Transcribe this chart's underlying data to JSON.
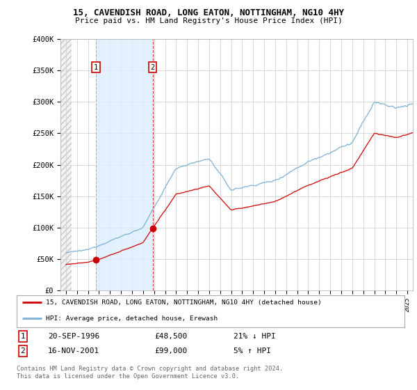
{
  "title1": "15, CAVENDISH ROAD, LONG EATON, NOTTINGHAM, NG10 4HY",
  "title2": "Price paid vs. HM Land Registry's House Price Index (HPI)",
  "legend_line1": "15, CAVENDISH ROAD, LONG EATON, NOTTINGHAM, NG10 4HY (detached house)",
  "legend_line2": "HPI: Average price, detached house, Erewash",
  "footer": "Contains HM Land Registry data © Crown copyright and database right 2024.\nThis data is licensed under the Open Government Licence v3.0.",
  "sale1_date": "20-SEP-1996",
  "sale1_price": "£48,500",
  "sale1_hpi": "21% ↓ HPI",
  "sale1_year": 1996.72,
  "sale1_value": 48500,
  "sale2_date": "16-NOV-2001",
  "sale2_price": "£99,000",
  "sale2_hpi": "5% ↑ HPI",
  "sale2_year": 2001.88,
  "sale2_value": 99000,
  "property_color": "#cc0000",
  "hpi_color": "#7ab0d4",
  "hpi_shade_color": "#ddeeff",
  "background_color": "#ffffff",
  "plot_bg_color": "#ffffff",
  "hatch_color": "#cccccc",
  "ylim": [
    0,
    400000
  ],
  "xlim_start": 1994.0,
  "xlim_end": 2025.5
}
